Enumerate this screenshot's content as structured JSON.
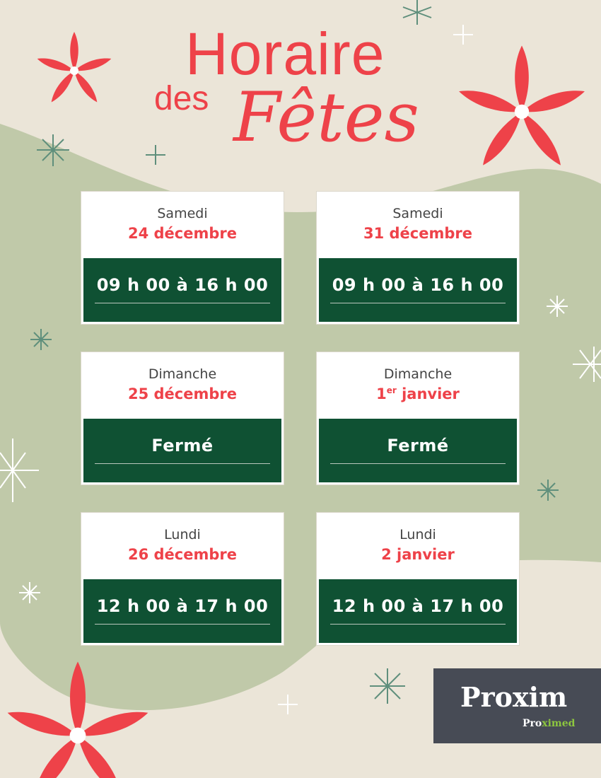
{
  "title": {
    "line1": "Horaire",
    "line2a": "des",
    "line2b": "Fêtes"
  },
  "colors": {
    "accent": "#ee4249",
    "green": "#0f5133",
    "background": "#ebe5d8",
    "blob": "#c0c9a9"
  },
  "schedule": [
    {
      "day": "Samedi",
      "date": "24 décembre",
      "hours": "09 h 00 à 16 h 00"
    },
    {
      "day": "Samedi",
      "date": "31 décembre",
      "hours": "09 h 00 à 16 h 00"
    },
    {
      "day": "Dimanche",
      "date": "25 décembre",
      "hours": "Fermé"
    },
    {
      "day": "Dimanche",
      "date_num": "1",
      "date_sup": "er",
      "date_rest": " janvier",
      "hours": "Fermé"
    },
    {
      "day": "Lundi",
      "date": "26 décembre",
      "hours": "12 h 00 à 17 h 00"
    },
    {
      "day": "Lundi",
      "date": "2 janvier",
      "hours": "12 h 00 à 17 h 00"
    }
  ],
  "logo": {
    "brand": "Proxim",
    "sub_a": "Pro",
    "sub_b": "ximed"
  },
  "decor": [
    "poinsettia-icon",
    "snowflake-icon"
  ]
}
